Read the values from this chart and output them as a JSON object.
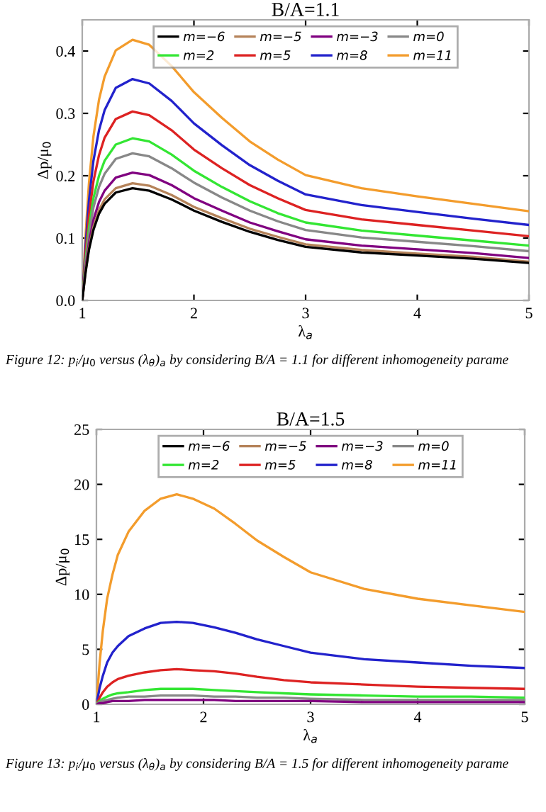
{
  "chart_data": [
    {
      "type": "line",
      "title": "B/A=1.1",
      "xlabel": "λ$_{a}$",
      "ylabel": "Δp/μ$_{0}$",
      "legend": "top",
      "grid": false,
      "x": [
        1,
        1.03,
        1.06,
        1.1,
        1.15,
        1.2,
        1.3,
        1.45,
        1.6,
        1.8,
        2,
        2.25,
        2.5,
        2.75,
        3,
        3.5,
        4,
        4.5,
        5
      ],
      "xlim": [
        1,
        5
      ],
      "xticks": [
        1,
        2,
        3,
        4,
        5
      ],
      "ylim": [
        0,
        0.45
      ],
      "yticks": [
        {
          "value": 0,
          "label": "0.0"
        },
        {
          "value": 0.1,
          "label": "0.1"
        },
        {
          "value": 0.2,
          "label": "0.2"
        },
        {
          "value": 0.3,
          "label": "0.3"
        },
        {
          "value": 0.4,
          "label": "0.4"
        }
      ],
      "series": [
        {
          "name": "m=−6",
          "color": "#000000",
          "values": [
            0,
            0.045,
            0.081,
            0.113,
            0.139,
            0.155,
            0.173,
            0.18,
            0.176,
            0.162,
            0.144,
            0.126,
            0.11,
            0.097,
            0.086,
            0.077,
            0.072,
            0.067,
            0.06
          ]
        },
        {
          "name": "m=−5",
          "color": "#b5835a",
          "values": [
            0,
            0.047,
            0.085,
            0.118,
            0.145,
            0.162,
            0.18,
            0.188,
            0.184,
            0.169,
            0.15,
            0.132,
            0.115,
            0.102,
            0.09,
            0.081,
            0.075,
            0.07,
            0.062
          ]
        },
        {
          "name": "m=−3",
          "color": "#800080",
          "values": [
            0,
            0.051,
            0.092,
            0.129,
            0.158,
            0.176,
            0.197,
            0.205,
            0.201,
            0.185,
            0.164,
            0.144,
            0.125,
            0.111,
            0.098,
            0.088,
            0.082,
            0.076,
            0.068
          ]
        },
        {
          "name": "m=0",
          "color": "#888888",
          "values": [
            0,
            0.059,
            0.106,
            0.149,
            0.182,
            0.203,
            0.227,
            0.236,
            0.231,
            0.212,
            0.189,
            0.165,
            0.144,
            0.127,
            0.113,
            0.101,
            0.094,
            0.087,
            0.079
          ]
        },
        {
          "name": "m=2",
          "color": "#33e633",
          "values": [
            0,
            0.065,
            0.117,
            0.164,
            0.2,
            0.224,
            0.25,
            0.26,
            0.255,
            0.234,
            0.208,
            0.182,
            0.159,
            0.14,
            0.125,
            0.112,
            0.104,
            0.096,
            0.088
          ]
        },
        {
          "name": "m=5",
          "color": "#dd2222",
          "values": [
            0,
            0.076,
            0.136,
            0.191,
            0.233,
            0.261,
            0.291,
            0.303,
            0.297,
            0.273,
            0.242,
            0.212,
            0.185,
            0.164,
            0.145,
            0.13,
            0.121,
            0.112,
            0.103
          ]
        },
        {
          "name": "m=8",
          "color": "#2222cc",
          "values": [
            0,
            0.089,
            0.16,
            0.224,
            0.273,
            0.305,
            0.341,
            0.355,
            0.348,
            0.32,
            0.284,
            0.249,
            0.217,
            0.192,
            0.17,
            0.153,
            0.142,
            0.131,
            0.121
          ]
        },
        {
          "name": "m=11",
          "color": "#f39c2c",
          "values": [
            0,
            0.105,
            0.188,
            0.263,
            0.322,
            0.359,
            0.401,
            0.418,
            0.41,
            0.376,
            0.334,
            0.293,
            0.255,
            0.226,
            0.201,
            0.18,
            0.167,
            0.155,
            0.143
          ]
        }
      ],
      "annotations": [
        "Figure 12: p$_{i}$/μ$_{0}$ versus (λ$_{θ}$)$_{a}$ by considering B/A = 1.1 for different inhomogeneity parame"
      ]
    },
    {
      "type": "line",
      "title": "B/A=1.5",
      "xlabel": "λ$_{a}$",
      "ylabel": "Δp/μ$_{0}$",
      "legend": "top",
      "grid": false,
      "x": [
        1,
        1.03,
        1.06,
        1.1,
        1.15,
        1.2,
        1.3,
        1.45,
        1.6,
        1.75,
        1.9,
        2.1,
        2.3,
        2.5,
        2.75,
        3,
        3.5,
        4,
        4.5,
        5
      ],
      "xlim": [
        1,
        5
      ],
      "xticks": [
        1,
        2,
        3,
        4,
        5
      ],
      "ylim": [
        0,
        25
      ],
      "yticks": [
        0,
        5,
        10,
        15,
        20,
        25
      ],
      "series": [
        {
          "name": "m=−6",
          "color": "#000000",
          "values": [
            null,
            null,
            null,
            null,
            null,
            null,
            null,
            null,
            null,
            null,
            null,
            null,
            null,
            null,
            null,
            null,
            null,
            null,
            null,
            null
          ]
        },
        {
          "name": "m=−5",
          "color": "#b5835a",
          "values": [
            null,
            null,
            null,
            null,
            null,
            null,
            null,
            null,
            null,
            null,
            null,
            null,
            null,
            null,
            null,
            null,
            null,
            null,
            null,
            null
          ]
        },
        {
          "name": "m=−3",
          "color": "#800080",
          "values": [
            0,
            0.1,
            0.1,
            0.2,
            0.3,
            0.3,
            0.3,
            0.4,
            0.4,
            0.4,
            0.4,
            0.4,
            0.3,
            0.3,
            0.3,
            0.3,
            0.2,
            0.2,
            0.2,
            0.2
          ]
        },
        {
          "name": "m=0",
          "color": "#888888",
          "values": [
            0,
            0.2,
            0.3,
            0.4,
            0.5,
            0.6,
            0.7,
            0.7,
            0.8,
            0.8,
            0.8,
            0.7,
            0.7,
            0.6,
            0.6,
            0.5,
            0.4,
            0.4,
            0.4,
            0.4
          ]
        },
        {
          "name": "m=2",
          "color": "#33e633",
          "values": [
            0,
            0.3,
            0.5,
            0.7,
            0.9,
            1.0,
            1.1,
            1.3,
            1.4,
            1.4,
            1.4,
            1.3,
            1.2,
            1.1,
            1.0,
            0.9,
            0.8,
            0.7,
            0.7,
            0.6
          ]
        },
        {
          "name": "m=5",
          "color": "#dd2222",
          "values": [
            0,
            0.6,
            1.1,
            1.6,
            2.0,
            2.3,
            2.6,
            2.9,
            3.1,
            3.2,
            3.1,
            3.0,
            2.8,
            2.5,
            2.2,
            2.0,
            1.8,
            1.6,
            1.5,
            1.4
          ]
        },
        {
          "name": "m=8",
          "color": "#2222cc",
          "values": [
            0,
            1.5,
            2.6,
            3.8,
            4.7,
            5.3,
            6.2,
            6.9,
            7.4,
            7.5,
            7.4,
            7.0,
            6.5,
            5.9,
            5.3,
            4.7,
            4.1,
            3.8,
            3.5,
            3.3
          ]
        },
        {
          "name": "m=11",
          "color": "#f39c2c",
          "values": [
            0,
            3.8,
            6.7,
            9.6,
            11.8,
            13.6,
            15.7,
            17.6,
            18.7,
            19.1,
            18.7,
            17.8,
            16.4,
            14.9,
            13.4,
            12.0,
            10.5,
            9.6,
            9.0,
            8.4
          ]
        }
      ],
      "annotations": [
        "Figure 13: p$_{i}$/μ$_{0}$ versus (λ$_{θ}$)$_{a}$ by considering B/A = 1.5 for different inhomogeneity parame"
      ]
    }
  ]
}
